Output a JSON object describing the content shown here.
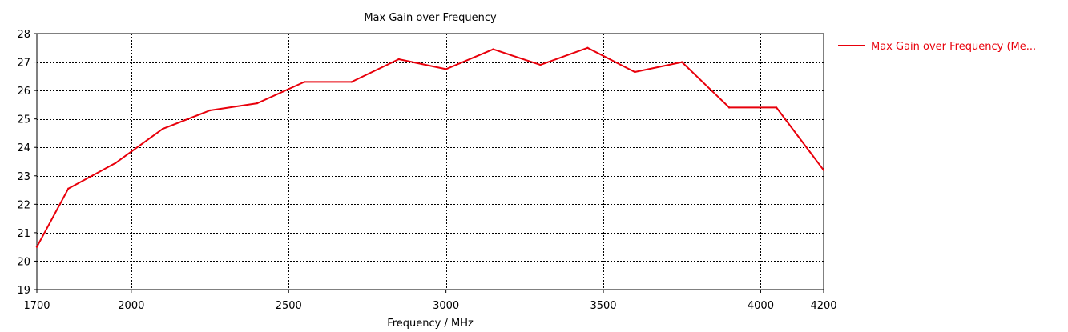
{
  "chart_data": {
    "type": "line",
    "title": "Max Gain over Frequency",
    "xlabel": "Frequency / MHz",
    "ylabel": "",
    "xlim": [
      1700,
      4200
    ],
    "ylim": [
      19,
      28
    ],
    "x_ticks": [
      1700,
      2000,
      2500,
      3000,
      3500,
      4000,
      4200
    ],
    "y_ticks": [
      19,
      20,
      21,
      22,
      23,
      24,
      25,
      26,
      27,
      28
    ],
    "x_grid": [
      2000,
      2500,
      3000,
      3500,
      4000
    ],
    "y_grid": [
      20,
      21,
      22,
      23,
      24,
      25,
      26,
      27
    ],
    "grid": true,
    "legend_position": "right",
    "series": [
      {
        "name": "Max Gain over Frequency (Me...",
        "color": "#e8000b",
        "x": [
          1700,
          1800,
          1950,
          2100,
          2250,
          2400,
          2550,
          2700,
          2850,
          3000,
          3150,
          3300,
          3450,
          3600,
          3750,
          3900,
          4050,
          4200
        ],
        "values": [
          20.5,
          22.55,
          23.45,
          24.65,
          25.3,
          25.55,
          26.3,
          26.3,
          27.1,
          26.75,
          27.45,
          26.9,
          27.5,
          26.65,
          27.0,
          25.4,
          25.4,
          23.2
        ]
      }
    ]
  }
}
